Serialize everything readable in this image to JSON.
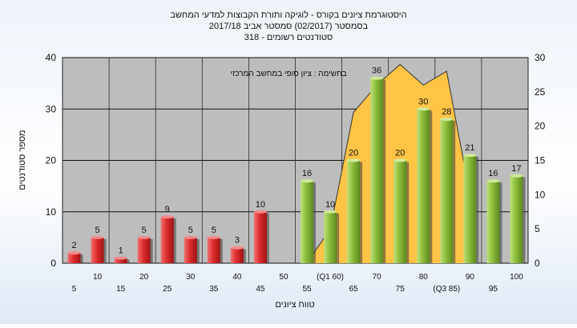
{
  "chart_data": {
    "type": "bar",
    "title_lines": [
      "היסטוגרמת ציונים בקורס - לוגיקה ותורת הקבוצות למדעי המחשב",
      "בסמסטר  (02/2017)  סמסטר אביב 2017/18",
      "סטודנטים רשומים - 318"
    ],
    "xlabel": "טווח ציונים",
    "ylabel": "מספר סטודנטים",
    "annotation": "בחשימה : ציון סופי במחשב המרכזי",
    "categories": [
      "5",
      "10",
      "15",
      "20",
      "25",
      "30",
      "35",
      "40",
      "45",
      "50",
      "55",
      "(Q1 60)",
      "65",
      "70",
      "75",
      "80",
      "(Q3 85)",
      "90",
      "95",
      "100"
    ],
    "values": [
      2,
      5,
      1,
      5,
      9,
      5,
      5,
      3,
      10,
      0,
      16,
      10,
      20,
      36,
      20,
      30,
      28,
      21,
      16,
      17
    ],
    "value_labels": [
      "2",
      "5",
      "1",
      "5",
      "9",
      "5",
      "5",
      "3",
      "10",
      "",
      "16",
      "10",
      "20",
      "36",
      "20",
      "30",
      "28",
      "21",
      "16",
      "17"
    ],
    "failing_bins": 9,
    "ylim_left": [
      0,
      40
    ],
    "yticks_left": [
      "0",
      "10",
      "20",
      "30",
      "40"
    ],
    "ylim_right": [
      0,
      30
    ],
    "yticks_right": [
      "0",
      "5",
      "10",
      "15",
      "20",
      "25",
      "30"
    ],
    "area_series": {
      "axis": "right",
      "color": "#ffc445",
      "x": [
        "55",
        "(Q1 60)",
        "65",
        "70",
        "75",
        "80",
        "(Q3 85)",
        "90"
      ],
      "values": [
        0,
        5,
        22,
        26,
        29,
        26,
        28,
        10
      ]
    },
    "colors": {
      "fail": "#dd2c2c",
      "pass": "#8cbc3a",
      "plot_bg": "#bdbdbd",
      "grid": "#111111"
    },
    "grid": true
  }
}
